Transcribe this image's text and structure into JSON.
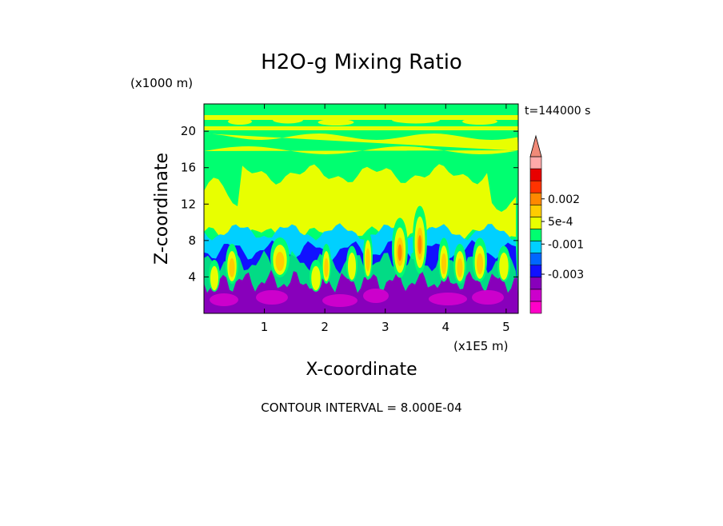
{
  "chart_data": {
    "type": "heatmap",
    "title": "H2O-g Mixing Ratio",
    "time_label": "t=144000 s",
    "xlabel": "X-coordinate",
    "ylabel": "Z-coordinate",
    "x_unit": "(x1E5 m)",
    "y_unit": "(x1000 m)",
    "xlim": [
      0,
      5.2
    ],
    "ylim": [
      0,
      23
    ],
    "x_ticks": [
      1,
      2,
      3,
      4,
      5
    ],
    "x_tick_labels": [
      "1",
      "2",
      "3",
      "4",
      "5"
    ],
    "y_ticks": [
      4,
      8,
      12,
      16,
      20
    ],
    "y_tick_labels": [
      "4",
      "8",
      "12",
      "16",
      "20"
    ],
    "contour_interval_text": "CONTOUR INTERVAL = 8.000E-04",
    "colorbar": {
      "colors": [
        "#ff00c8",
        "#cc00cc",
        "#8800bb",
        "#1111ff",
        "#0066ff",
        "#00d0ff",
        "#00ff70",
        "#e8ff00",
        "#ffcc00",
        "#ff8800",
        "#ff3300",
        "#e80000",
        "#ffaaaa",
        "#f08a78"
      ],
      "labels": [
        {
          "text": "0.002",
          "value": 0.002
        },
        {
          "text": "5e-4",
          "value": 0.0005
        },
        {
          "text": "-0.001",
          "value": -0.001
        },
        {
          "text": "-0.003",
          "value": -0.003
        }
      ]
    },
    "field_layers": [
      {
        "name": "upper-green-band",
        "color": "#00ff70"
      },
      {
        "name": "yellow-core",
        "color": "#e8ff00"
      },
      {
        "name": "cyan-layer",
        "color": "#00d0ff"
      },
      {
        "name": "blue-layer",
        "color": "#1111ff"
      },
      {
        "name": "purple-base",
        "color": "#8800bb"
      },
      {
        "name": "magenta-base",
        "color": "#cc00cc"
      },
      {
        "name": "plumes",
        "colors": [
          "#00ff70",
          "#e8ff00",
          "#ffcc00",
          "#ff8800"
        ]
      }
    ]
  }
}
